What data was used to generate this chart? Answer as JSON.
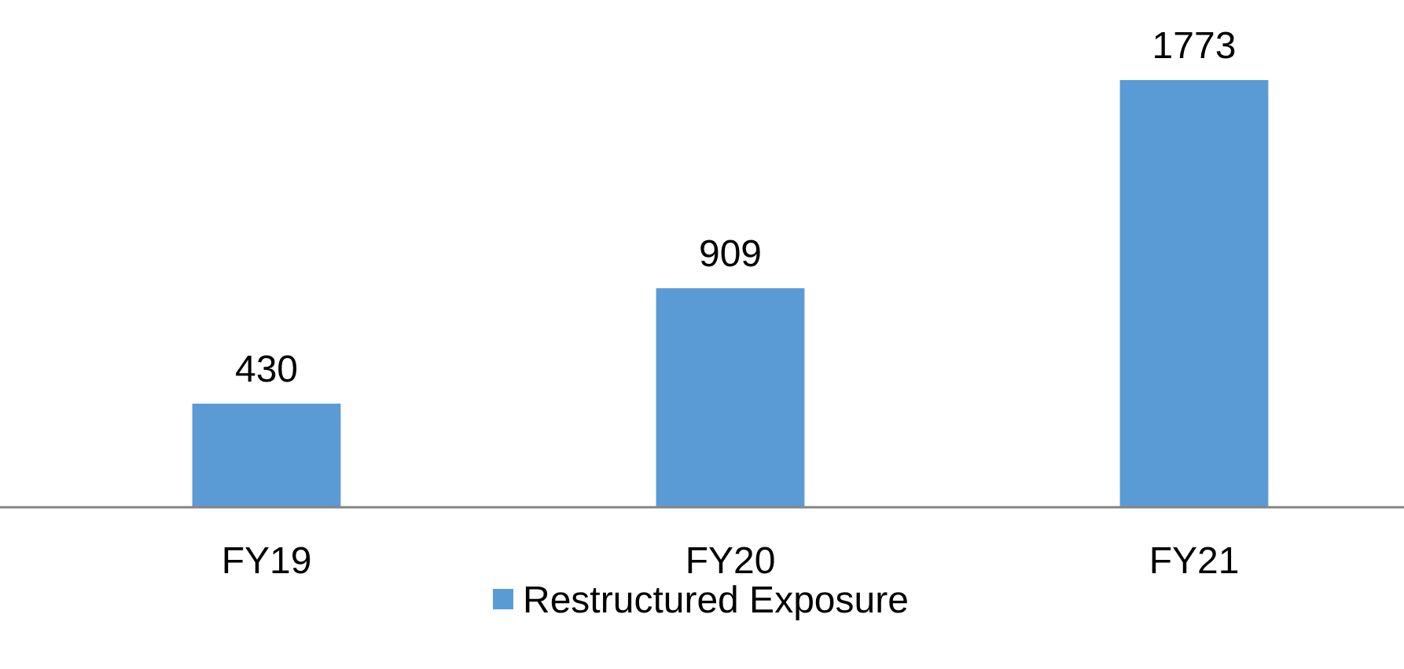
{
  "chart_data": {
    "type": "bar",
    "categories": [
      "FY19",
      "FY20",
      "FY21"
    ],
    "series": [
      {
        "name": "Restructured Exposure",
        "color": "#5b9bd5",
        "values": [
          430,
          909,
          1773
        ]
      }
    ],
    "data_labels": true,
    "legend": "bottom"
  }
}
